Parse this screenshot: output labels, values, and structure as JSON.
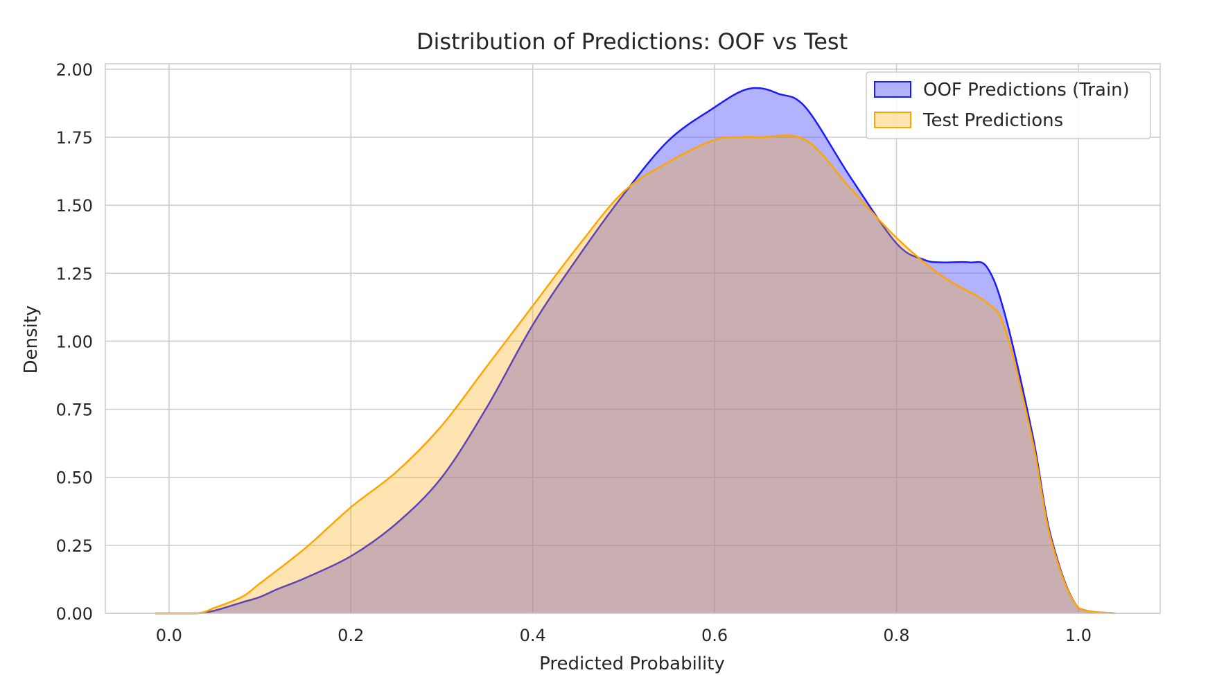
{
  "chart_data": {
    "type": "area",
    "title": "Distribution of Predictions: OOF vs Test",
    "xlabel": "Predicted Probability",
    "ylabel": "Density",
    "xlim": [
      -0.07,
      1.09
    ],
    "ylim": [
      0,
      2.02
    ],
    "xticks": [
      "0.0",
      "0.2",
      "0.4",
      "0.6",
      "0.8",
      "1.0"
    ],
    "yticks": [
      "0.00",
      "0.25",
      "0.50",
      "0.75",
      "1.00",
      "1.25",
      "1.50",
      "1.75",
      "2.00"
    ],
    "grid": true,
    "legend_position": "top-right",
    "series": [
      {
        "name": "OOF Predictions (Train)",
        "line_color": "#1a1aff",
        "fill_color": "#6666ff",
        "fill_opacity": 0.5,
        "x": [
          -0.015,
          0.03,
          0.05,
          0.08,
          0.1,
          0.12,
          0.15,
          0.2,
          0.25,
          0.3,
          0.35,
          0.4,
          0.45,
          0.5,
          0.55,
          0.6,
          0.63,
          0.65,
          0.67,
          0.7,
          0.75,
          0.8,
          0.83,
          0.85,
          0.88,
          0.9,
          0.92,
          0.95,
          0.97,
          1.0,
          1.04
        ],
        "y": [
          0.0,
          0.0,
          0.01,
          0.04,
          0.06,
          0.09,
          0.13,
          0.21,
          0.33,
          0.5,
          0.76,
          1.06,
          1.31,
          1.54,
          1.74,
          1.86,
          1.92,
          1.93,
          1.91,
          1.86,
          1.6,
          1.36,
          1.3,
          1.29,
          1.29,
          1.27,
          1.09,
          0.65,
          0.28,
          0.02,
          0.0
        ]
      },
      {
        "name": "Test Predictions",
        "line_color": "#ffa500",
        "fill_color": "#ffa500",
        "fill_opacity": 0.3,
        "x": [
          -0.015,
          0.03,
          0.05,
          0.08,
          0.1,
          0.15,
          0.2,
          0.25,
          0.3,
          0.35,
          0.4,
          0.45,
          0.5,
          0.55,
          0.6,
          0.63,
          0.65,
          0.7,
          0.75,
          0.8,
          0.85,
          0.9,
          0.92,
          0.95,
          0.97,
          1.0,
          1.04
        ],
        "y": [
          0.0,
          0.0,
          0.02,
          0.06,
          0.11,
          0.24,
          0.39,
          0.52,
          0.69,
          0.91,
          1.13,
          1.35,
          1.55,
          1.66,
          1.74,
          1.75,
          1.75,
          1.74,
          1.56,
          1.38,
          1.24,
          1.14,
          1.04,
          0.63,
          0.27,
          0.02,
          0.0
        ]
      }
    ]
  }
}
